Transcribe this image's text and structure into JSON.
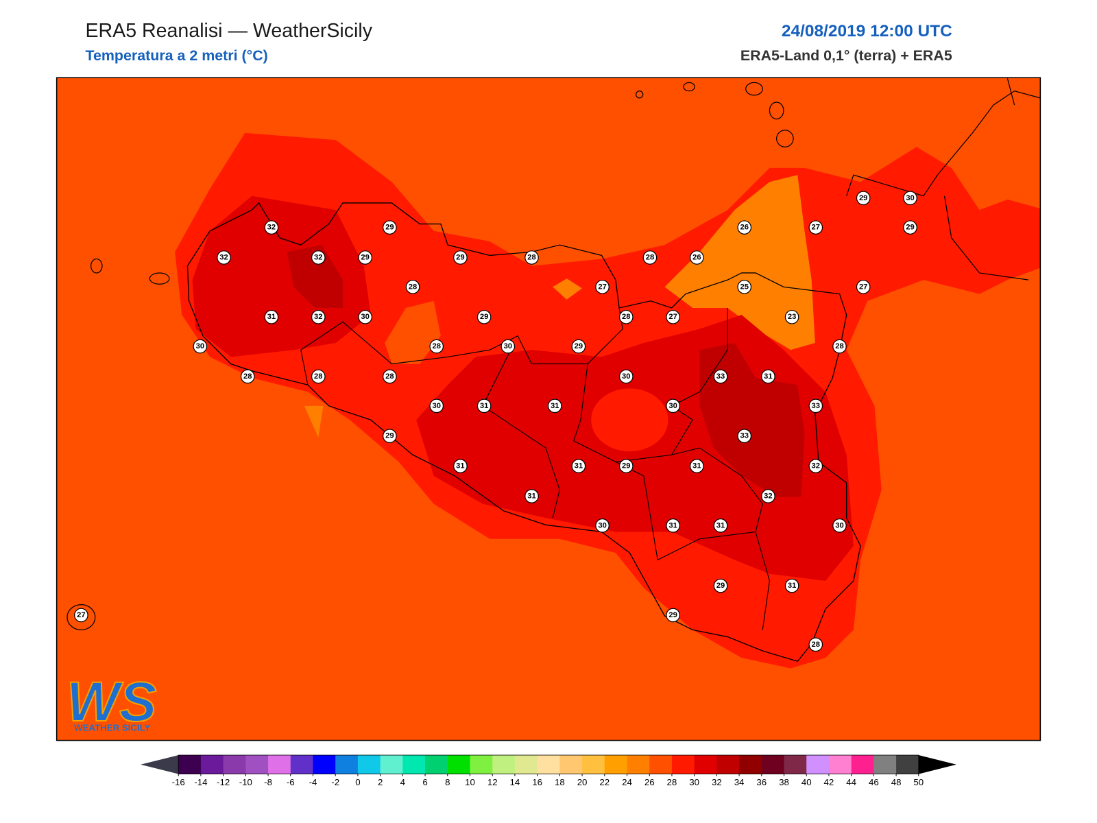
{
  "header": {
    "title": "ERA5 Reanalisi — WeatherSicily",
    "subtitle": "Temperatura a 2 metri (°C)",
    "date": "24/08/2019 12:00 UTC",
    "source": "ERA5-Land 0,1° (terra) + ERA5"
  },
  "stations": [
    32,
    29,
    32,
    32,
    29,
    29,
    28,
    28,
    31,
    32,
    30,
    29,
    30,
    28,
    30,
    29,
    28,
    28,
    28,
    30,
    31,
    31,
    29,
    31,
    31,
    31,
    29,
    30,
    29,
    30,
    26,
    27,
    29,
    28,
    26,
    27,
    25,
    27,
    28,
    27,
    23,
    28,
    30,
    33,
    31,
    30,
    33,
    33,
    31,
    32,
    32,
    31,
    31,
    30,
    29,
    31,
    29,
    28,
    27
  ],
  "colorbar": {
    "ticks": [
      -16,
      -14,
      -12,
      -10,
      -8,
      -6,
      -4,
      -2,
      0,
      2,
      4,
      6,
      8,
      10,
      12,
      14,
      16,
      18,
      20,
      22,
      24,
      26,
      28,
      30,
      32,
      34,
      36,
      38,
      40,
      42,
      44,
      46,
      48,
      50
    ],
    "colors": [
      "#3d0050",
      "#6a1a9a",
      "#8a3aaa",
      "#a050c0",
      "#e070e8",
      "#6030c8",
      "#0000ff",
      "#1080e0",
      "#10c8e8",
      "#60f0d0",
      "#00e8b0",
      "#00d070",
      "#00e000",
      "#80f040",
      "#c0f080",
      "#e0e890",
      "#ffe0a0",
      "#ffc870",
      "#ffc040",
      "#ffa000",
      "#ff8000",
      "#ff5000",
      "#ff1a00",
      "#e00000",
      "#c00000",
      "#900000",
      "#700020",
      "#802848",
      "#d090ff",
      "#ff80d0",
      "#ff2090",
      "#808080",
      "#404040"
    ],
    "under_color": "#3a3a4a",
    "over_color": "#000000"
  },
  "logo": {
    "mark": "WS",
    "name": "WEATHER SICILY"
  }
}
